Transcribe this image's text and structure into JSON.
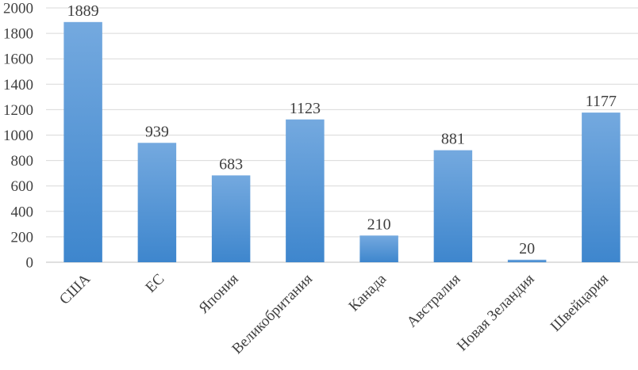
{
  "chart_data": {
    "type": "bar",
    "title": "",
    "xlabel": "",
    "ylabel": "",
    "categories": [
      "США",
      "ЕС",
      "Япония",
      "Великобритания",
      "Канада",
      "Австралия",
      "Новая Зеландия",
      "Швейцария"
    ],
    "values": [
      1889,
      939,
      683,
      1123,
      210,
      881,
      20,
      1177
    ],
    "data_labels": [
      "1889",
      "939",
      "683",
      "1123",
      "210",
      "881",
      "20",
      "1177"
    ],
    "yticks": [
      "0",
      "200",
      "400",
      "600",
      "800",
      "1000",
      "1200",
      "1400",
      "1600",
      "1800",
      "2000"
    ],
    "ylim": [
      0,
      2000
    ],
    "grid": true,
    "legend": "none",
    "colors": {
      "bar_top": "#74a9df",
      "bar_bottom": "#3e86cd",
      "grid": "#d9d9d9",
      "axis": "#bfbfbf",
      "text": "#404040"
    }
  }
}
